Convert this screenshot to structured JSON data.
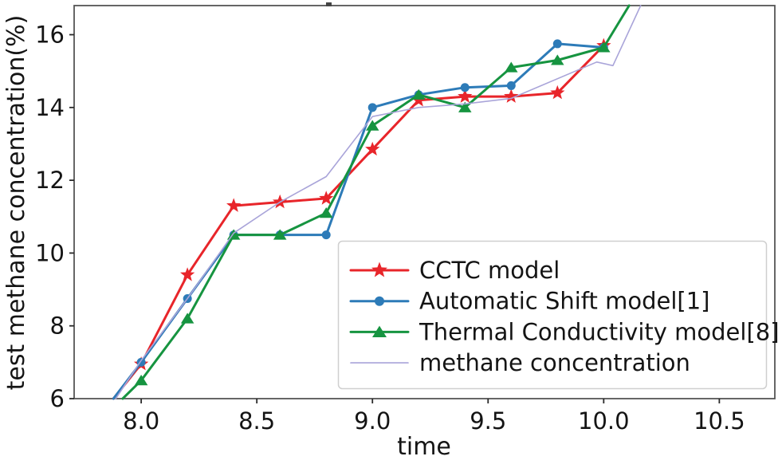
{
  "figure": {
    "background": "#ffffff",
    "spine_color": "#555555",
    "tick_color": "#2a2a2a",
    "text_color": "#141414",
    "legend_border_color": "#cfcfcf",
    "legend_background": "#ffffff"
  },
  "chart_data": {
    "type": "line",
    "title": "",
    "xlabel": "time",
    "ylabel": "test methane concentration(%)",
    "xlim": [
      7.71,
      10.74
    ],
    "ylim": [
      6,
      16.8
    ],
    "x_ticks": [
      8.0,
      8.5,
      9.0,
      9.5,
      10.0,
      10.5
    ],
    "x_tick_labels": [
      "8.0",
      "8.5",
      "9.0",
      "9.5",
      "10.0",
      "10.5"
    ],
    "y_ticks": [
      6,
      8,
      10,
      12,
      14,
      16
    ],
    "y_tick_labels": [
      "6",
      "8",
      "10",
      "12",
      "14",
      "16"
    ],
    "grid": false,
    "legend_position": "lower right",
    "series": [
      {
        "name": "CCTC model",
        "color": "#e8252a",
        "marker": "star",
        "line_width": 3,
        "marker_skip_first": true,
        "marker_skip_last": false,
        "points": [
          [
            7.88,
            6.0
          ],
          [
            8.0,
            6.95
          ],
          [
            8.2,
            9.4
          ],
          [
            8.4,
            11.3
          ],
          [
            8.6,
            11.4
          ],
          [
            8.8,
            11.5
          ],
          [
            9.0,
            12.85
          ],
          [
            9.2,
            14.2
          ],
          [
            9.4,
            14.3
          ],
          [
            9.6,
            14.3
          ],
          [
            9.8,
            14.4
          ],
          [
            10.0,
            15.7
          ]
        ]
      },
      {
        "name": "Automatic Shift model[1]",
        "color": "#2d7bb8",
        "marker": "circle",
        "line_width": 3,
        "marker_skip_first": true,
        "marker_skip_last": false,
        "points": [
          [
            7.88,
            6.0
          ],
          [
            8.0,
            7.0
          ],
          [
            8.2,
            8.75
          ],
          [
            8.4,
            10.5
          ],
          [
            8.6,
            10.5
          ],
          [
            8.8,
            10.5
          ],
          [
            9.0,
            14.0
          ],
          [
            9.2,
            14.35
          ],
          [
            9.4,
            14.55
          ],
          [
            9.6,
            14.6
          ],
          [
            9.8,
            15.75
          ],
          [
            10.0,
            15.65
          ]
        ]
      },
      {
        "name": "Thermal Conductivity model[8]",
        "color": "#169440",
        "marker": "triangle",
        "line_width": 3,
        "marker_skip_first": true,
        "marker_skip_last": true,
        "points": [
          [
            7.92,
            6.0
          ],
          [
            8.0,
            6.5
          ],
          [
            8.2,
            8.2
          ],
          [
            8.4,
            10.5
          ],
          [
            8.6,
            10.5
          ],
          [
            8.8,
            11.1
          ],
          [
            9.0,
            13.5
          ],
          [
            9.2,
            14.35
          ],
          [
            9.4,
            14.0
          ],
          [
            9.6,
            15.1
          ],
          [
            9.8,
            15.3
          ],
          [
            10.0,
            15.65
          ],
          [
            10.11,
            16.8
          ]
        ]
      },
      {
        "name": "methane concentration",
        "color": "#a9a4d9",
        "marker": "none",
        "line_width": 1.6,
        "marker_skip_first": true,
        "marker_skip_last": true,
        "points": [
          [
            7.89,
            6.0
          ],
          [
            8.0,
            7.05
          ],
          [
            8.2,
            8.75
          ],
          [
            8.4,
            10.55
          ],
          [
            8.6,
            11.4
          ],
          [
            8.8,
            12.1
          ],
          [
            9.0,
            13.75
          ],
          [
            9.2,
            14.0
          ],
          [
            9.4,
            14.1
          ],
          [
            9.6,
            14.25
          ],
          [
            9.97,
            15.25
          ],
          [
            10.04,
            15.15
          ],
          [
            10.16,
            16.8
          ]
        ]
      }
    ]
  }
}
